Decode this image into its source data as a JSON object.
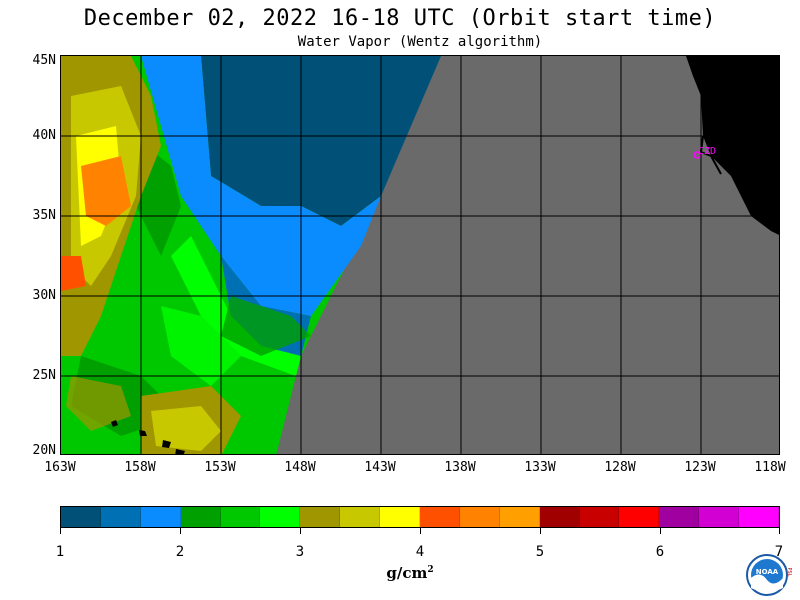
{
  "title": "December 02, 2022  16-18 UTC  (Orbit start time)",
  "subtitle": "Water Vapor (Wentz algorithm)",
  "lat_labels": [
    "45N",
    "40N",
    "35N",
    "30N",
    "25N",
    "20N"
  ],
  "lon_labels": [
    "163W",
    "158W",
    "153W",
    "148W",
    "143W",
    "138W",
    "133W",
    "128W",
    "123W",
    "118W"
  ],
  "station_label": "CZD",
  "colorbar": {
    "colors": [
      "#005078",
      "#0070b4",
      "#0a8cff",
      "#00a000",
      "#00c800",
      "#00ff00",
      "#a09600",
      "#c8c800",
      "#ffff00",
      "#ff5000",
      "#ff8200",
      "#ffa000",
      "#a00000",
      "#c80000",
      "#ff0000",
      "#a000a0",
      "#d200d2",
      "#ff00ff"
    ],
    "tick_labels": [
      "1",
      "2",
      "3",
      "4",
      "5",
      "6",
      "7"
    ],
    "units": "g/cm",
    "units_exp": "2"
  },
  "logo_text": "NOAA",
  "logo_side_text": "PSL"
}
